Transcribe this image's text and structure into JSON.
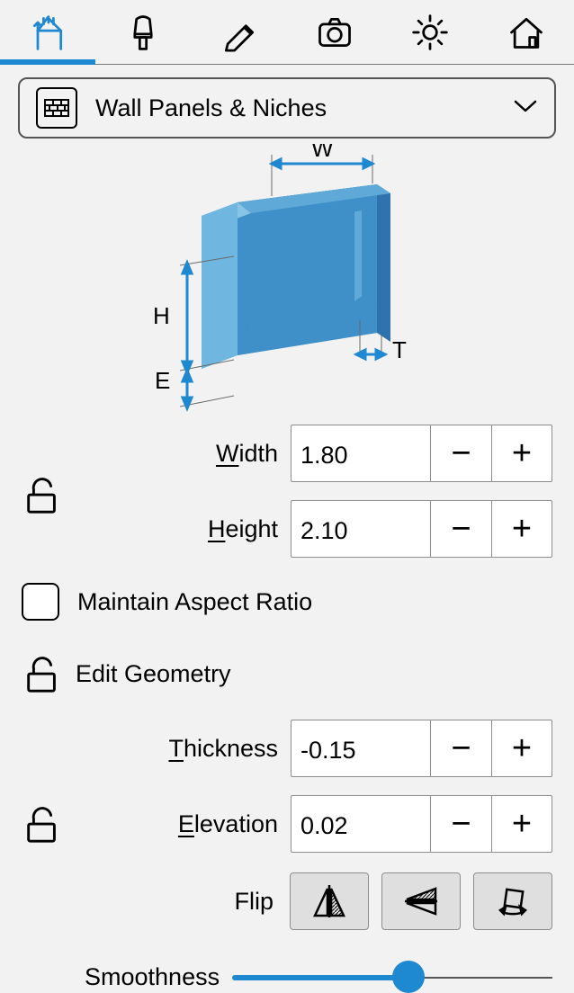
{
  "category": {
    "label": "Wall Panels & Niches"
  },
  "diagram": {
    "labels": {
      "W": "W",
      "H": "H",
      "E": "E",
      "T": "T"
    },
    "colors": {
      "light": "#6fb6e0",
      "mid": "#3f8fc9",
      "dark": "#2a5f99",
      "top": "#5fa9d8",
      "dims": "#6a6a6a",
      "arrow": "#1e88d0"
    }
  },
  "fields": {
    "width": {
      "label_pre": "",
      "label_u": "W",
      "label_post": "idth",
      "value": "1.80"
    },
    "height": {
      "label_pre": "",
      "label_u": "H",
      "label_post": "eight",
      "value": "2.10"
    },
    "thickness": {
      "label_pre": "",
      "label_u": "T",
      "label_post": "hickness",
      "value": "-0.15"
    },
    "elevation": {
      "label_pre": "",
      "label_u": "E",
      "label_post": "levation",
      "value": "0.02"
    }
  },
  "maintain_ar": {
    "label": "Maintain Aspect Ratio",
    "checked": false
  },
  "edit_geom": {
    "label": "Edit Geometry"
  },
  "flip": {
    "label": "Flip"
  },
  "smoothness": {
    "label": "Smoothness",
    "value_pct": 55
  },
  "icons": {
    "minus": "−",
    "plus": "+"
  },
  "colors": {
    "accent": "#1e88d0",
    "border": "#8d8d8d",
    "bg": "#f2f2f2",
    "btn_bg": "#dfdfdf"
  }
}
